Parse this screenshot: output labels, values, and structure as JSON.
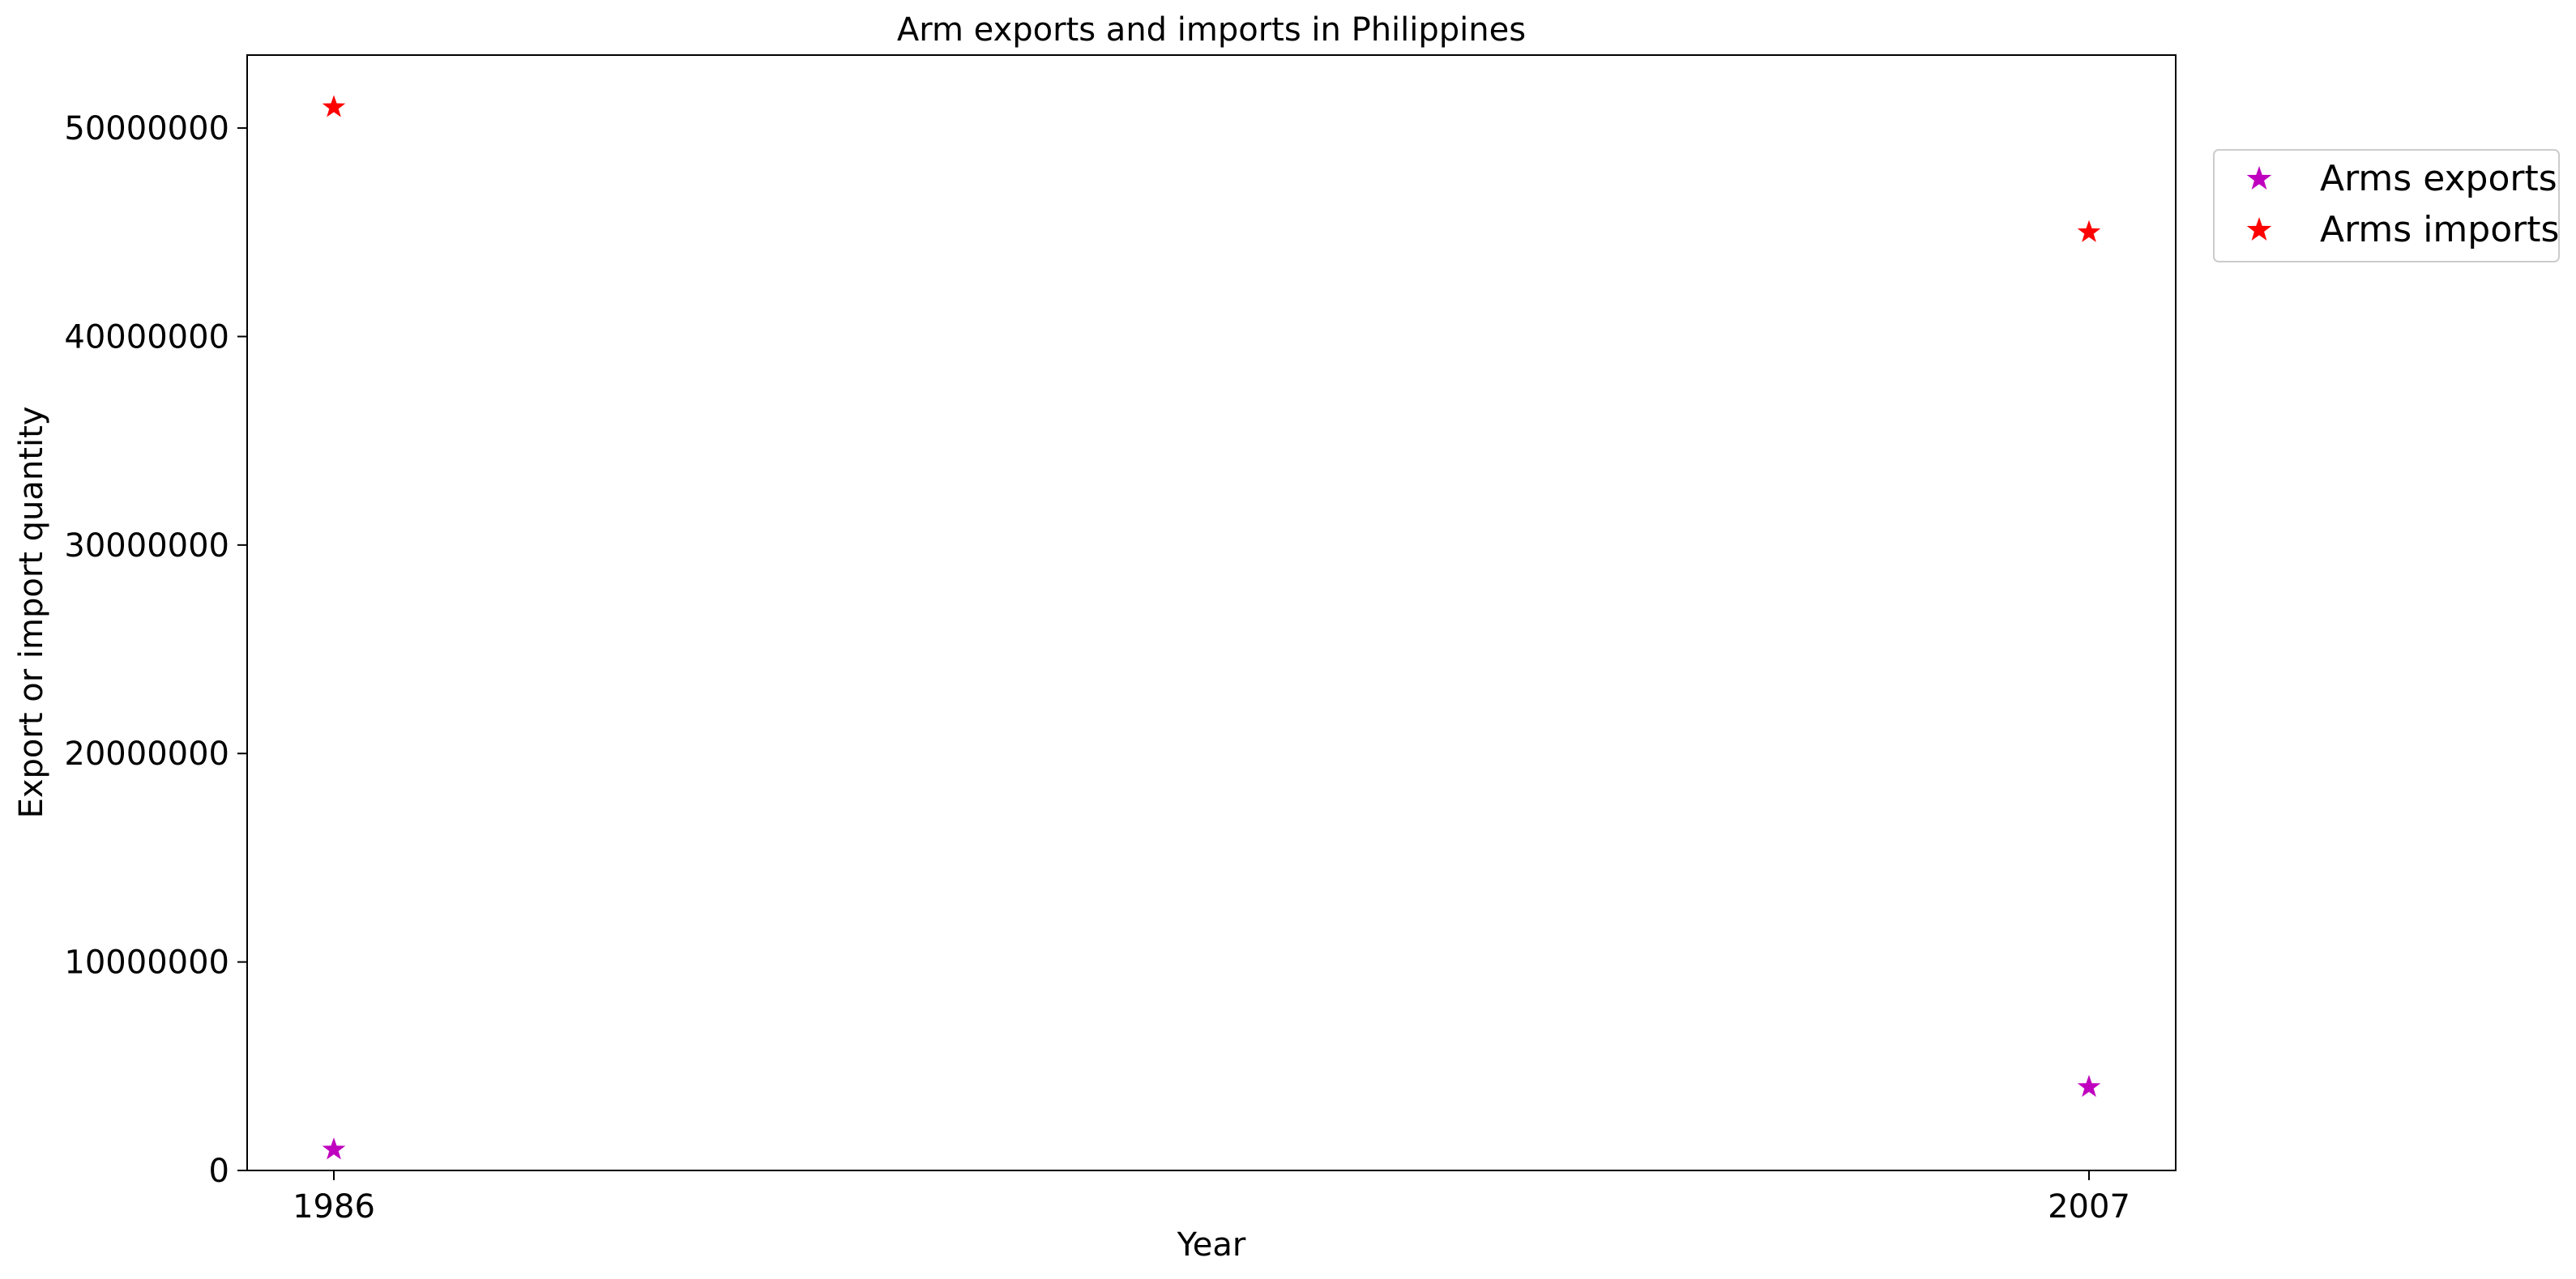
{
  "chart_data": {
    "type": "scatter",
    "title": "Arm exports and imports in Philippines",
    "xlabel": "Year",
    "ylabel": "Export or import quantity",
    "x_categories": [
      "1986",
      "2007"
    ],
    "ylim": [
      0,
      53500000
    ],
    "yticks": [
      0,
      10000000,
      20000000,
      30000000,
      40000000,
      50000000
    ],
    "ytick_labels": [
      "0",
      "10000000",
      "20000000",
      "30000000",
      "40000000",
      "50000000"
    ],
    "grid": false,
    "legend_position": "outside-top-right",
    "marker": "star",
    "series": [
      {
        "name": "Arms exports",
        "color": "#bf00bf",
        "values": [
          1000000,
          4000000
        ]
      },
      {
        "name": "Arms imports",
        "color": "#ff0000",
        "values": [
          51000000,
          45000000
        ]
      }
    ]
  }
}
